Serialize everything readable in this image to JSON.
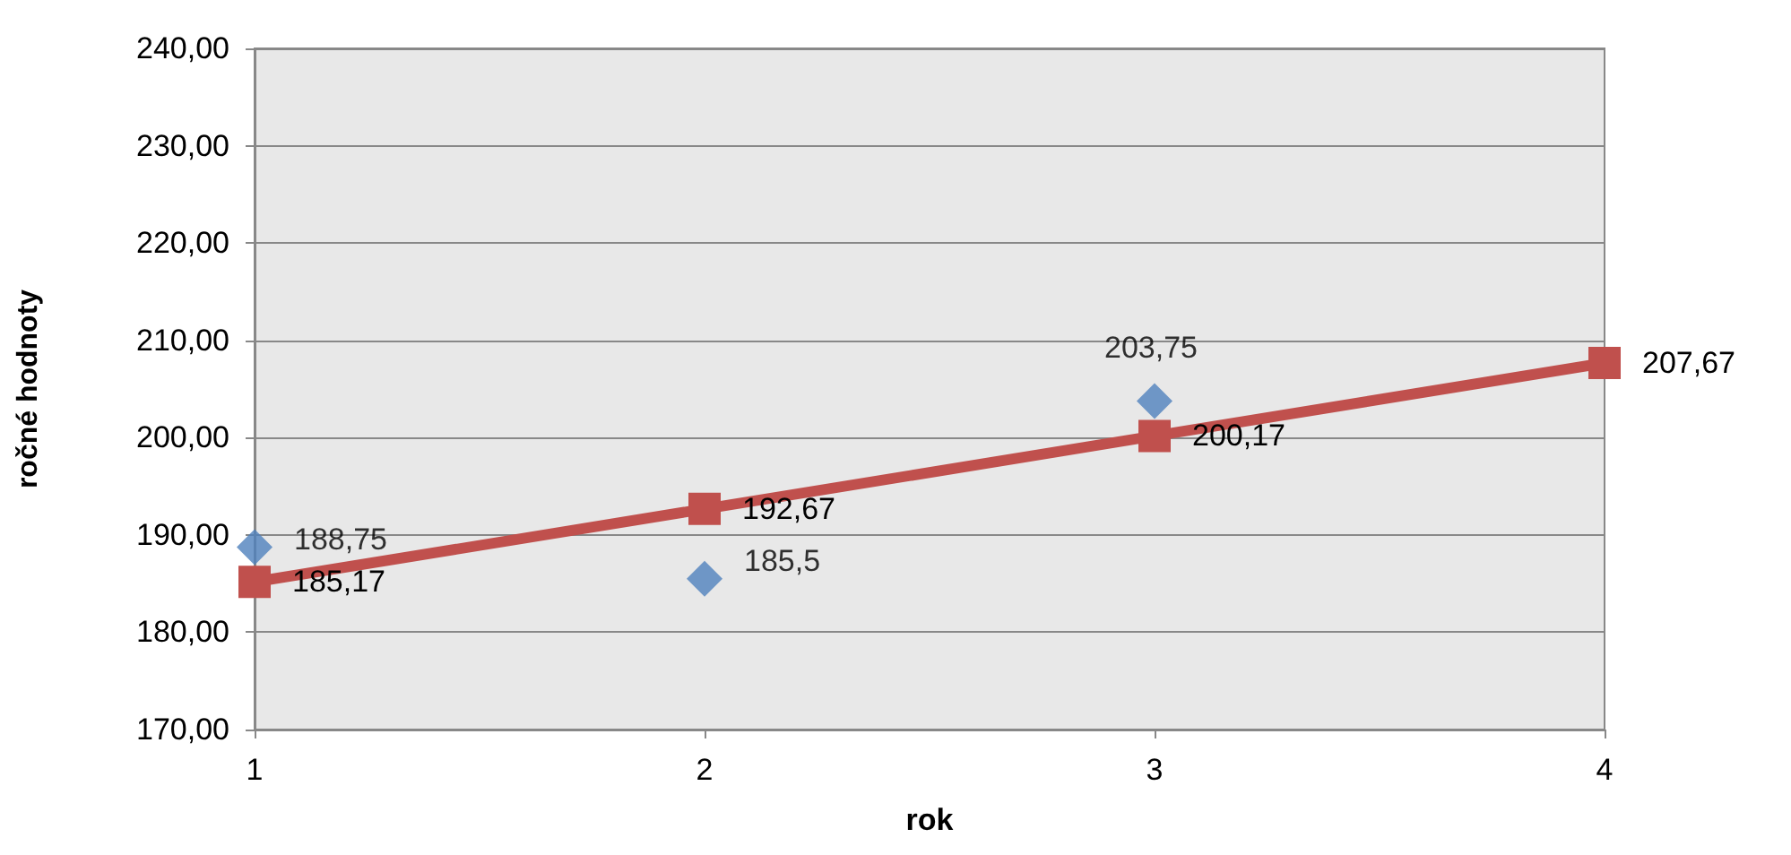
{
  "chart_data": {
    "type": "line",
    "xlabel": "rok",
    "ylabel": "ročné hodnoty",
    "xlim": [
      1,
      4
    ],
    "xticks": [
      1,
      2,
      3,
      4
    ],
    "ylim": [
      170,
      240
    ],
    "yticks": [
      {
        "value": 170,
        "label": "170,00"
      },
      {
        "value": 180,
        "label": "180,00"
      },
      {
        "value": 190,
        "label": "190,00"
      },
      {
        "value": 200,
        "label": "200,00"
      },
      {
        "value": 210,
        "label": "210,00"
      },
      {
        "value": 220,
        "label": "220,00"
      },
      {
        "value": 230,
        "label": "230,00"
      },
      {
        "value": 240,
        "label": "240,00"
      }
    ],
    "grid": "y",
    "series": [
      {
        "type": "scatter",
        "marker": "diamond",
        "color": "#4f81bd",
        "x": [
          1,
          2,
          3
        ],
        "values": [
          188.75,
          185.5,
          203.75
        ],
        "value_labels": [
          "188,75",
          "185,5",
          "203,75"
        ]
      },
      {
        "marker": "square",
        "line_style": "solid",
        "color": "#c0504d",
        "x": [
          1,
          2,
          3,
          4
        ],
        "values": [
          185.17,
          192.67,
          200.17,
          207.67
        ],
        "value_labels": [
          "185,17",
          "192,67",
          "200,17",
          "207,67"
        ]
      }
    ]
  }
}
